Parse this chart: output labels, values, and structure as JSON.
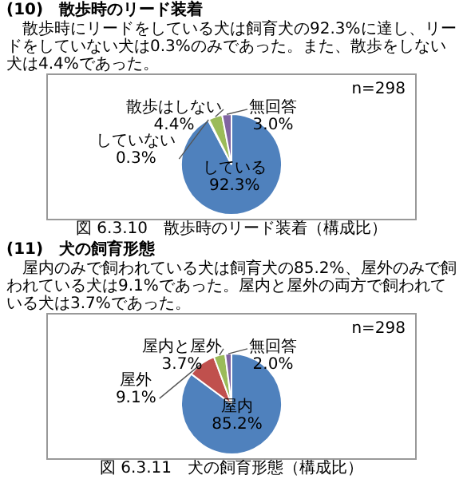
{
  "chart_data": [
    {
      "type": "pie",
      "title": "(10)　散歩時のリード装着",
      "subtitle": "散歩時にリードをしている犬は飼育犬の92.3%に達し、リードをしていない犬は0.3%のみであった。また、散歩をしない犬は4.4%であった。",
      "categories": [
        "している",
        "していない",
        "散歩はしない",
        "無回答"
      ],
      "values": [
        92.3,
        0.3,
        4.4,
        3.0
      ],
      "colors": [
        "#4f81bd",
        "#c0504d",
        "#9bbb59",
        "#8064a2"
      ],
      "value_labels": [
        "92.3%",
        "0.3%",
        "4.4%",
        "3.0%"
      ],
      "legend": false,
      "annotations": [
        "n=298",
        "図 6.3.10　散歩時のリード装着（構成比）"
      ]
    },
    {
      "type": "pie",
      "title": "(11)　犬の飼育形態",
      "subtitle": "屋内のみで飼われている犬は飼育犬の85.2%、屋外のみで飼われている犬は9.1%であった。屋内と屋外の両方で飼われている犬は3.7%であった。",
      "categories": [
        "屋内",
        "屋外",
        "屋内と屋外",
        "無回答"
      ],
      "values": [
        85.2,
        9.1,
        3.7,
        2.0
      ],
      "colors": [
        "#4f81bd",
        "#c0504d",
        "#9bbb59",
        "#8064a2"
      ],
      "value_labels": [
        "85.2%",
        "9.1%",
        "3.7%",
        "2.0%"
      ],
      "legend": false,
      "annotations": [
        "n=298",
        "図 6.3.11　犬の飼育形態（構成比）"
      ]
    }
  ]
}
